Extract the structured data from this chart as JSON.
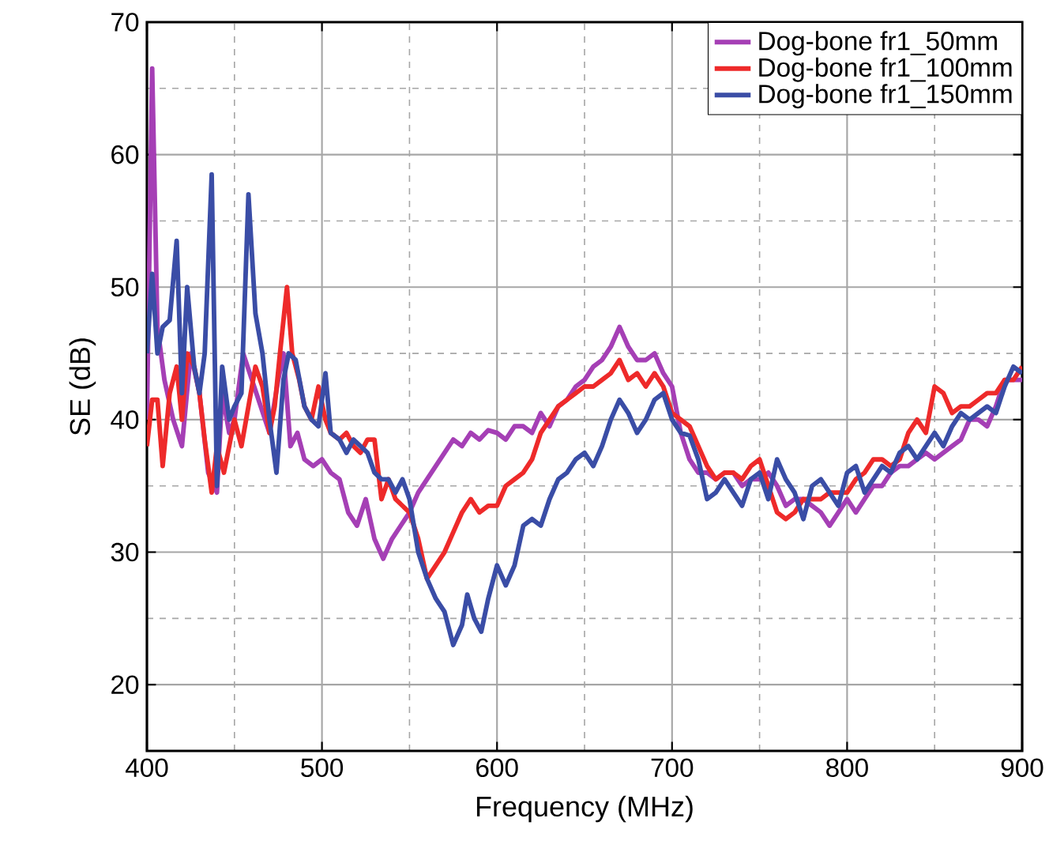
{
  "chart_data": {
    "type": "line",
    "xlabel": "Frequency (MHz)",
    "ylabel": "SE (dB)",
    "xlim": [
      400,
      900
    ],
    "ylim": [
      15,
      70
    ],
    "xticks": [
      400,
      {
        "value": 450,
        "label": null
      },
      500,
      {
        "value": 550,
        "label": null
      },
      600,
      {
        "value": 650,
        "label": null
      },
      700,
      {
        "value": 750,
        "label": null
      },
      800,
      {
        "value": 850,
        "label": null
      },
      900
    ],
    "yticks": [
      20,
      {
        "value": 25,
        "label": null
      },
      30,
      {
        "value": 35,
        "label": null
      },
      40,
      {
        "value": 45,
        "label": null
      },
      50,
      {
        "value": 55,
        "label": null
      },
      60,
      {
        "value": 65,
        "label": null
      },
      70
    ],
    "grid": true,
    "legend": "top right",
    "marker": "none",
    "line_style": "solid",
    "series": [
      {
        "name": "Dog-bone fr1_50mm",
        "color": "#a53fb5",
        "x": [
          400,
          403,
          406,
          410,
          415,
          420,
          425,
          430,
          435,
          440,
          443,
          447,
          450,
          455,
          460,
          465,
          470,
          475,
          478,
          482,
          486,
          490,
          495,
          500,
          505,
          510,
          515,
          520,
          525,
          530,
          535,
          540,
          545,
          550,
          555,
          560,
          565,
          570,
          575,
          580,
          585,
          590,
          595,
          600,
          605,
          610,
          615,
          620,
          625,
          630,
          635,
          640,
          645,
          650,
          655,
          660,
          665,
          670,
          675,
          680,
          685,
          690,
          695,
          700,
          705,
          710,
          715,
          720,
          725,
          730,
          735,
          740,
          745,
          750,
          755,
          760,
          765,
          770,
          775,
          780,
          785,
          790,
          795,
          800,
          805,
          810,
          815,
          820,
          825,
          830,
          835,
          840,
          845,
          850,
          855,
          860,
          865,
          870,
          875,
          880,
          885,
          890,
          895,
          900
        ],
        "values": [
          40,
          66.5,
          47,
          43,
          40,
          38,
          45,
          42,
          36,
          34.5,
          42,
          39,
          40,
          45,
          43,
          41,
          39,
          43,
          45,
          38,
          39,
          37,
          36.5,
          37,
          36,
          35.5,
          33,
          32,
          34,
          31,
          29.5,
          31,
          32,
          33,
          34.5,
          35.5,
          36.5,
          37.5,
          38.5,
          38,
          39,
          38.5,
          39.2,
          39,
          38.5,
          39.5,
          39.5,
          39,
          40.5,
          39.5,
          41,
          41.5,
          42.5,
          43,
          44,
          44.5,
          45.5,
          47,
          45.5,
          44.5,
          44.5,
          45,
          43.5,
          42.5,
          39,
          37,
          36,
          36,
          35.5,
          36,
          36,
          35,
          35.5,
          35.5,
          36,
          35,
          33.5,
          34,
          34,
          33.5,
          33,
          32,
          33,
          34,
          33,
          34,
          35,
          35,
          36,
          36.5,
          36.5,
          37,
          37.5,
          37,
          37.5,
          38,
          38.5,
          40,
          40,
          39.5,
          41,
          43,
          43,
          43
        ]
      },
      {
        "name": "Dog-bone fr1_100mm",
        "color": "#ee2a2a",
        "x": [
          400,
          403,
          406,
          409,
          413,
          417,
          420,
          423,
          427,
          430,
          433,
          437,
          440,
          444,
          447,
          450,
          454,
          458,
          462,
          466,
          470,
          473,
          476,
          480,
          483,
          487,
          490,
          494,
          498,
          502,
          505,
          510,
          514,
          518,
          522,
          526,
          530,
          534,
          538,
          542,
          546,
          550,
          555,
          560,
          565,
          570,
          575,
          580,
          585,
          590,
          595,
          600,
          605,
          610,
          615,
          620,
          625,
          630,
          635,
          640,
          645,
          650,
          655,
          660,
          665,
          670,
          675,
          680,
          685,
          690,
          695,
          700,
          705,
          710,
          715,
          720,
          725,
          730,
          735,
          740,
          745,
          750,
          755,
          760,
          765,
          770,
          775,
          780,
          785,
          790,
          795,
          800,
          805,
          810,
          815,
          820,
          825,
          830,
          835,
          840,
          845,
          850,
          855,
          860,
          865,
          870,
          875,
          880,
          885,
          890,
          895,
          900
        ],
        "values": [
          38,
          41.5,
          41.5,
          36.5,
          42,
          44,
          40,
          45,
          44,
          42,
          38.5,
          34.5,
          38,
          36,
          38,
          40,
          38,
          41,
          44,
          42.5,
          39,
          41,
          45,
          50,
          45,
          43,
          41,
          40,
          42.5,
          40,
          39,
          38.5,
          39,
          38,
          37.5,
          38.5,
          38.5,
          34,
          35.5,
          34,
          33.5,
          33,
          31,
          28,
          29,
          30,
          31.5,
          33,
          34,
          33,
          33.5,
          33.5,
          35,
          35.5,
          36,
          37,
          39,
          40,
          41,
          41.5,
          42,
          42.5,
          42.5,
          43,
          43.5,
          44.5,
          43,
          43.5,
          42.5,
          43.5,
          42.5,
          40.5,
          40,
          39.5,
          38,
          36.5,
          35.5,
          36,
          36,
          35.5,
          36.5,
          37,
          35,
          33,
          32.5,
          33,
          34,
          34,
          34,
          34.5,
          34.5,
          34.5,
          35.5,
          36,
          37,
          37,
          36.5,
          37,
          39,
          40,
          39,
          42.5,
          42,
          40.5,
          41,
          41,
          41.5,
          42,
          42,
          43,
          43,
          44
        ]
      },
      {
        "name": "Dog-bone fr1_150mm",
        "color": "#3a4da6",
        "x": [
          400,
          403,
          406,
          409,
          413,
          417,
          420,
          423,
          427,
          430,
          433,
          437,
          440,
          443,
          447,
          450,
          454,
          458,
          462,
          466,
          470,
          474,
          478,
          481,
          485,
          490,
          494,
          498,
          502,
          505,
          510,
          514,
          518,
          522,
          526,
          530,
          534,
          538,
          542,
          546,
          550,
          555,
          560,
          565,
          570,
          575,
          580,
          583,
          587,
          591,
          595,
          600,
          605,
          610,
          615,
          620,
          625,
          630,
          635,
          640,
          645,
          650,
          655,
          660,
          665,
          670,
          675,
          680,
          685,
          690,
          695,
          700,
          705,
          710,
          715,
          720,
          725,
          730,
          735,
          740,
          745,
          750,
          755,
          760,
          765,
          770,
          775,
          780,
          785,
          790,
          795,
          800,
          805,
          810,
          815,
          820,
          825,
          830,
          835,
          840,
          845,
          850,
          855,
          860,
          865,
          870,
          875,
          880,
          885,
          890,
          895,
          900
        ],
        "values": [
          45,
          51,
          45,
          47,
          47.5,
          53.5,
          42,
          50,
          44,
          42,
          45,
          58.5,
          35,
          44,
          40,
          41,
          42,
          57,
          48,
          45,
          40,
          36,
          43,
          45,
          44.5,
          41,
          40,
          39.5,
          43.5,
          39,
          38.5,
          37.5,
          38.5,
          38,
          37.5,
          36,
          35.5,
          35.5,
          34.5,
          35.5,
          34,
          30,
          28,
          26.5,
          25.5,
          23,
          24.5,
          26.8,
          25,
          24,
          26.5,
          29,
          27.5,
          29,
          32,
          32.5,
          32,
          34,
          35.5,
          36,
          37,
          37.5,
          36.5,
          38,
          40,
          41.5,
          40.5,
          39,
          40,
          41.5,
          42,
          40,
          39,
          38.8,
          37,
          34,
          34.5,
          35.5,
          34.5,
          33.5,
          35.5,
          36,
          34,
          37,
          35.5,
          34.5,
          32.5,
          35,
          35.5,
          34.5,
          33.5,
          36,
          36.5,
          34.5,
          35.5,
          36.5,
          36,
          37.5,
          38,
          37,
          38,
          39,
          38,
          39.5,
          40.5,
          40,
          40.5,
          41,
          40.5,
          42.5,
          44,
          43.5
        ]
      }
    ]
  }
}
